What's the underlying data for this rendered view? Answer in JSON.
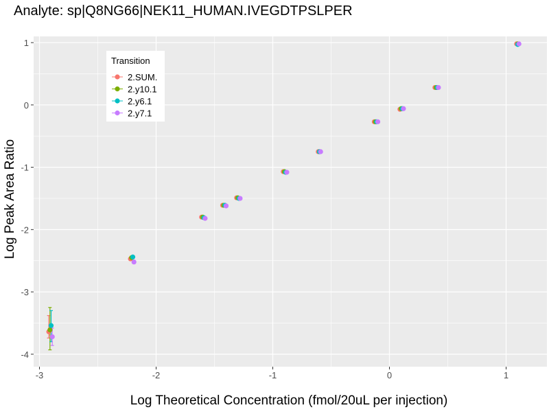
{
  "chart_data": {
    "type": "scatter",
    "title": "Analyte: sp|Q8NG66|NEK11_HUMAN.IVEGDTPSLPER",
    "xlabel": "Log Theoretical Concentration (fmol/20uL per injection)",
    "ylabel": "Log Peak Area Ratio",
    "xlim": [
      -3.05,
      1.35
    ],
    "ylim": [
      -4.2,
      1.1
    ],
    "x_ticks": [
      -3,
      -2,
      -1,
      0,
      1
    ],
    "x_tick_labels": [
      "-3",
      "-2",
      "-1",
      "0",
      "1"
    ],
    "y_ticks": [
      -4,
      -3,
      -2,
      -1,
      0,
      1
    ],
    "y_tick_labels": [
      "-4",
      "-3",
      "-2",
      "-1",
      "0",
      "1"
    ],
    "grid": true,
    "legend": {
      "title": "Transition",
      "position": "top-left"
    },
    "series": [
      {
        "name": "2.SUM.",
        "color": "#F8766D",
        "x": [
          -2.92,
          -2.22,
          -1.61,
          -1.43,
          -1.31,
          -0.91,
          -0.61,
          -0.13,
          0.09,
          0.39,
          1.09
        ],
        "y": [
          -3.64,
          -2.47,
          -1.8,
          -1.61,
          -1.49,
          -1.07,
          -0.75,
          -0.27,
          -0.07,
          0.28,
          0.98
        ],
        "err_low": [
          -3.74,
          null,
          null,
          null,
          null,
          null,
          null,
          null,
          null,
          null,
          null
        ],
        "err_high": [
          -3.38,
          null,
          null,
          null,
          null,
          null,
          null,
          null,
          null,
          null,
          null
        ]
      },
      {
        "name": "2.y10.1",
        "color": "#7CAE00",
        "x": [
          -2.91,
          -2.21,
          -1.6,
          -1.42,
          -1.3,
          -0.9,
          -0.6,
          -0.12,
          0.1,
          0.4,
          1.1
        ],
        "y": [
          -3.61,
          -2.45,
          -1.8,
          -1.61,
          -1.49,
          -1.07,
          -0.75,
          -0.27,
          -0.06,
          0.28,
          0.98
        ],
        "err_low": [
          -3.93,
          null,
          null,
          null,
          null,
          null,
          null,
          null,
          null,
          null,
          null
        ],
        "err_high": [
          -3.25,
          null,
          null,
          null,
          null,
          null,
          null,
          null,
          null,
          null,
          null
        ]
      },
      {
        "name": "2.y6.1",
        "color": "#00BFC4",
        "x": [
          -2.9,
          -2.2,
          -1.59,
          -1.41,
          -1.29,
          -0.89,
          -0.6,
          -0.11,
          0.11,
          0.41,
          1.1
        ],
        "y": [
          -3.54,
          -2.44,
          -1.81,
          -1.61,
          -1.5,
          -1.08,
          -0.75,
          -0.27,
          -0.06,
          0.28,
          0.97
        ],
        "err_low": [
          -3.8,
          null,
          null,
          null,
          null,
          null,
          null,
          null,
          null,
          null,
          null
        ],
        "err_high": [
          -3.3,
          null,
          null,
          null,
          null,
          null,
          null,
          null,
          null,
          null,
          null
        ]
      },
      {
        "name": "2.y7.1",
        "color": "#C77CFF",
        "x": [
          -2.89,
          -2.19,
          -1.58,
          -1.4,
          -1.28,
          -0.88,
          -0.59,
          -0.1,
          0.12,
          0.42,
          1.11
        ],
        "y": [
          -3.72,
          -2.52,
          -1.82,
          -1.62,
          -1.5,
          -1.08,
          -0.75,
          -0.27,
          -0.06,
          0.28,
          0.98
        ],
        "err_low": [
          -3.86,
          null,
          null,
          null,
          null,
          null,
          null,
          null,
          null,
          null,
          null
        ],
        "err_high": [
          -3.58,
          null,
          null,
          null,
          null,
          null,
          null,
          null,
          null,
          null,
          null
        ]
      }
    ]
  }
}
